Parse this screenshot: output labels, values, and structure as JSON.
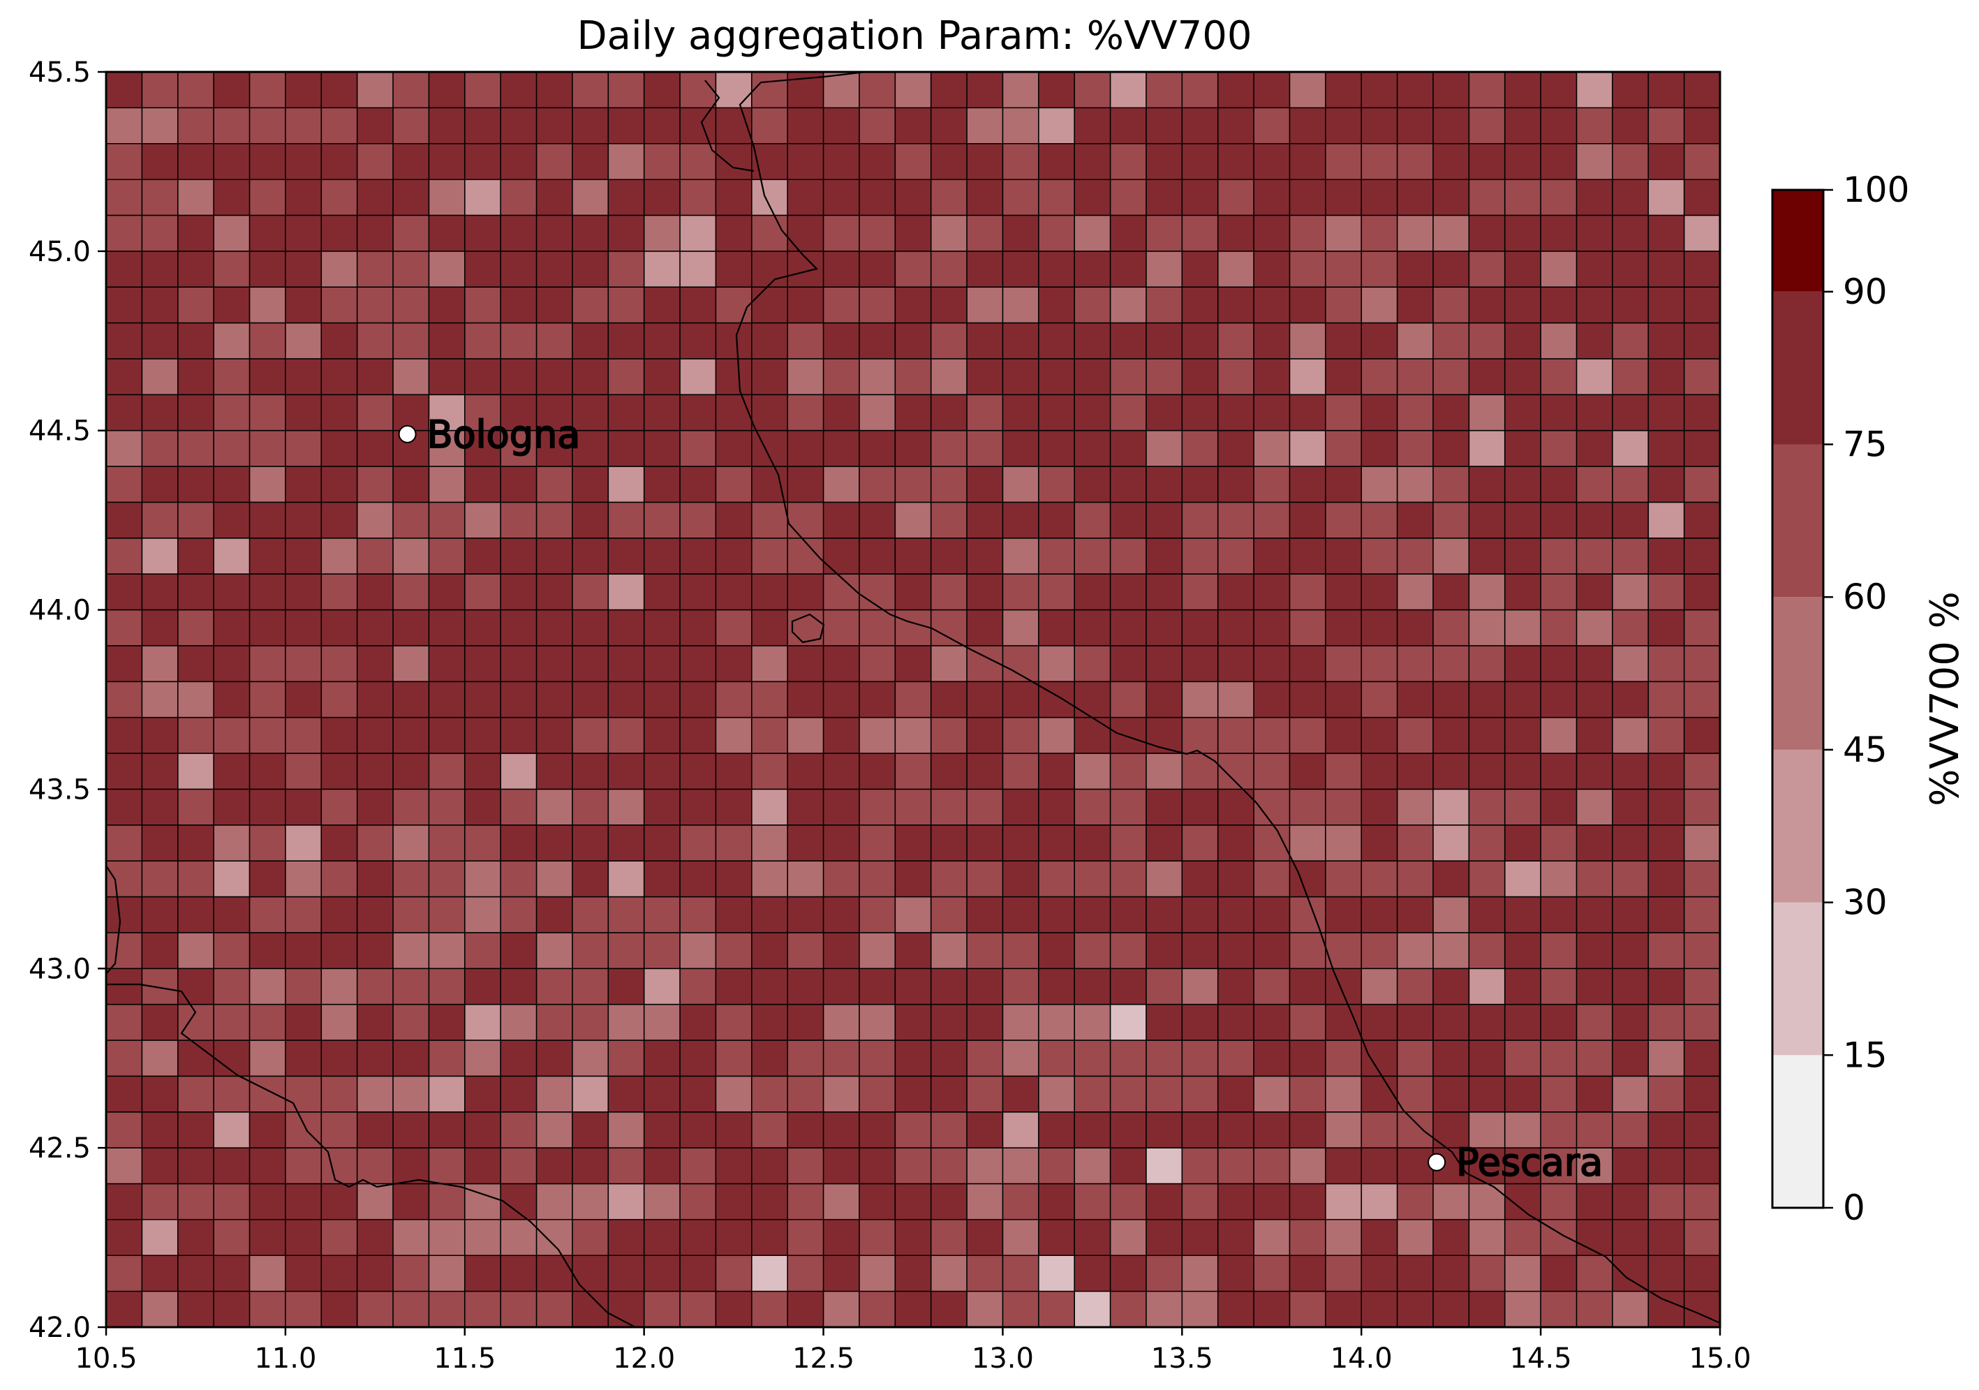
{
  "title": "Daily aggregation Param: %VV700",
  "map": {
    "lon_range": [
      10.5,
      15.0
    ],
    "lat_range": [
      42.0,
      45.5
    ],
    "cell_deg": 0.1,
    "x_ticks": [
      "10.5",
      "11.0",
      "11.5",
      "12.0",
      "12.5",
      "13.0",
      "13.5",
      "14.0",
      "14.5",
      "15.0"
    ],
    "y_ticks": [
      "42.0",
      "42.5",
      "43.0",
      "43.5",
      "44.0",
      "44.5",
      "45.0",
      "45.5"
    ],
    "cities": [
      {
        "name": "Bologna",
        "lon": 11.34,
        "lat": 44.49
      },
      {
        "name": "Pescara",
        "lon": 14.21,
        "lat": 42.46
      }
    ]
  },
  "colorbar": {
    "label": "%VV700 %",
    "levels": [
      0,
      15,
      30,
      45,
      60,
      75,
      90,
      100
    ],
    "tick_labels": [
      "0",
      "15",
      "30",
      "45",
      "60",
      "75",
      "90",
      "100"
    ],
    "colors": [
      "#f0f0f0",
      "#dcbfc3",
      "#c89598",
      "#b16f71",
      "#9c4a4e",
      "#832a30",
      "#6d0000"
    ]
  },
  "colors": {
    "gridline": "#000000",
    "coastline": "#000000",
    "city_marker": "#ffffff"
  },
  "chart_data": {
    "type": "heatmap",
    "title": "Daily aggregation Param: %VV700",
    "xlim": [
      10.5,
      15.0
    ],
    "ylim": [
      42.0,
      45.5
    ],
    "colorbar_label": "%VV700 %",
    "field_summary": "Most grid cells fall in the 75-90 class; scattered cells in 60-75 and 45-60, a few in 30-45 and 15-30, concentrated in the central-southern area.",
    "low_value_cells": [
      {
        "lon": 10.85,
        "lat": 44.15,
        "class": "30-45"
      },
      {
        "lon": 10.65,
        "lat": 44.15,
        "class": "30-45"
      },
      {
        "lon": 10.85,
        "lat": 43.25,
        "class": "30-45"
      },
      {
        "lon": 12.05,
        "lat": 42.95,
        "class": "30-45"
      },
      {
        "lon": 11.55,
        "lat": 42.85,
        "class": "30-45"
      },
      {
        "lon": 12.35,
        "lat": 42.15,
        "class": "15-30"
      },
      {
        "lon": 13.15,
        "lat": 42.15,
        "class": "15-30"
      },
      {
        "lon": 13.25,
        "lat": 42.05,
        "class": "15-30"
      },
      {
        "lon": 13.35,
        "lat": 42.85,
        "class": "15-30"
      },
      {
        "lon": 13.45,
        "lat": 42.45,
        "class": "15-30"
      },
      {
        "lon": 14.85,
        "lat": 45.15,
        "class": "30-45"
      },
      {
        "lon": 14.65,
        "lat": 45.45,
        "class": "30-45"
      }
    ]
  }
}
